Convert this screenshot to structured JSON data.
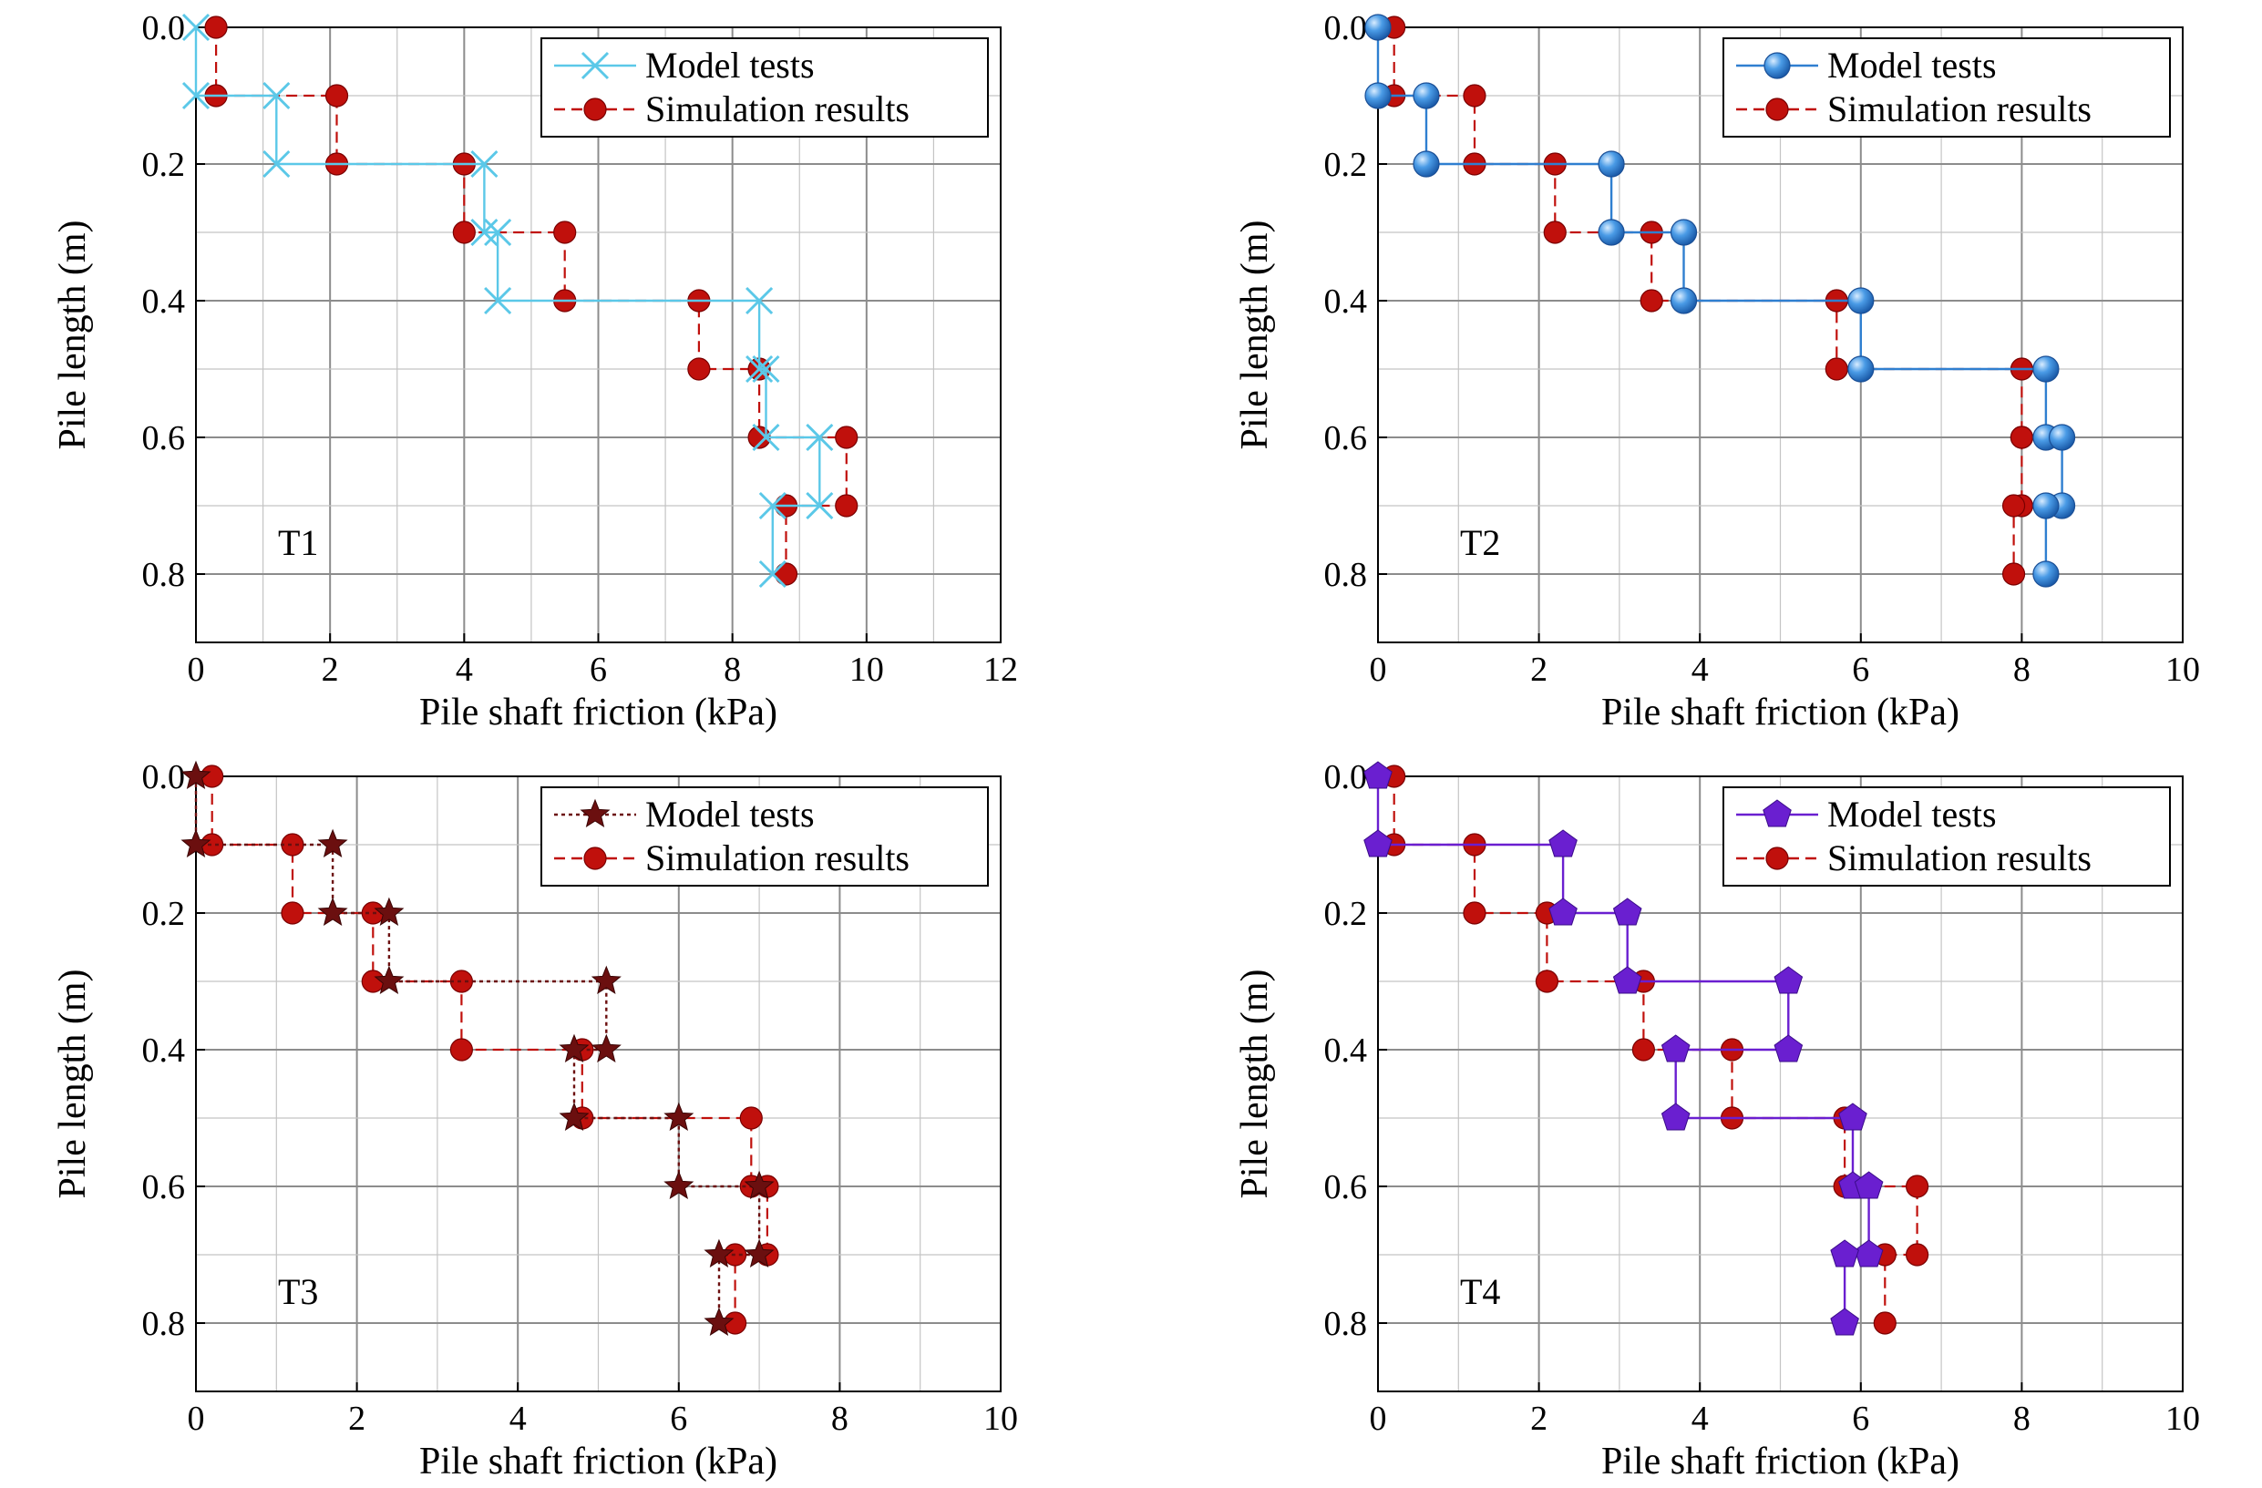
{
  "figure": {
    "legend_labels": [
      "Model tests",
      "Simulation results"
    ],
    "xlabel": "Pile shaft friction (kPa)",
    "ylabel": "Pile length (m)"
  },
  "chart_data": [
    {
      "id": "T1",
      "type": "line",
      "panel_label": "T1",
      "xlabel": "Pile shaft friction (kPa)",
      "ylabel": "Pile length (m)",
      "xlim": [
        0,
        12
      ],
      "ylim": [
        0,
        0.9
      ],
      "y_inverted": true,
      "xticks": [
        0,
        2,
        4,
        6,
        8,
        10,
        12
      ],
      "xtick_labels": [
        "0",
        "2",
        "4",
        "6",
        "8",
        "10",
        "12"
      ],
      "yticks": [
        0.0,
        0.2,
        0.4,
        0.6,
        0.8
      ],
      "ytick_labels": [
        "0.0",
        "0.2",
        "0.4",
        "0.6",
        "0.8"
      ],
      "grid": true,
      "legend_position": "top-right",
      "series": [
        {
          "name": "Model tests",
          "color": "#5bc8e8",
          "line": "solid",
          "marker": "x",
          "points": [
            [
              0,
              0.0
            ],
            [
              0,
              0.1
            ],
            [
              1.2,
              0.1
            ],
            [
              1.2,
              0.2
            ],
            [
              4.3,
              0.2
            ],
            [
              4.3,
              0.3
            ],
            [
              4.5,
              0.3
            ],
            [
              4.5,
              0.4
            ],
            [
              8.4,
              0.4
            ],
            [
              8.4,
              0.5
            ],
            [
              8.5,
              0.5
            ],
            [
              8.5,
              0.6
            ],
            [
              9.3,
              0.6
            ],
            [
              9.3,
              0.7
            ],
            [
              8.6,
              0.7
            ],
            [
              8.6,
              0.8
            ]
          ]
        },
        {
          "name": "Simulation results",
          "color": "#c0100c",
          "line": "dashed",
          "marker": "circle",
          "points": [
            [
              0.3,
              0.0
            ],
            [
              0.3,
              0.1
            ],
            [
              2.1,
              0.1
            ],
            [
              2.1,
              0.2
            ],
            [
              4.0,
              0.2
            ],
            [
              4.0,
              0.3
            ],
            [
              5.5,
              0.3
            ],
            [
              5.5,
              0.4
            ],
            [
              7.5,
              0.4
            ],
            [
              7.5,
              0.5
            ],
            [
              8.4,
              0.5
            ],
            [
              8.4,
              0.6
            ],
            [
              9.7,
              0.6
            ],
            [
              9.7,
              0.7
            ],
            [
              8.8,
              0.7
            ],
            [
              8.8,
              0.8
            ]
          ]
        }
      ]
    },
    {
      "id": "T2",
      "type": "line",
      "panel_label": "T2",
      "xlabel": "Pile shaft friction (kPa)",
      "ylabel": "Pile length (m)",
      "xlim": [
        0,
        10
      ],
      "ylim": [
        0,
        0.9
      ],
      "y_inverted": true,
      "xticks": [
        0,
        2,
        4,
        6,
        8,
        10
      ],
      "xtick_labels": [
        "0",
        "2",
        "4",
        "6",
        "8",
        "10"
      ],
      "yticks": [
        0.0,
        0.2,
        0.4,
        0.6,
        0.8
      ],
      "ytick_labels": [
        "0.0",
        "0.2",
        "0.4",
        "0.6",
        "0.8"
      ],
      "grid": true,
      "legend_position": "top-right",
      "series": [
        {
          "name": "Model tests",
          "color": "#2f7fd0",
          "line": "solid",
          "marker": "sphere",
          "points": [
            [
              0.0,
              0.0
            ],
            [
              0.0,
              0.1
            ],
            [
              0.6,
              0.1
            ],
            [
              0.6,
              0.2
            ],
            [
              2.9,
              0.2
            ],
            [
              2.9,
              0.3
            ],
            [
              3.8,
              0.3
            ],
            [
              3.8,
              0.4
            ],
            [
              6.0,
              0.4
            ],
            [
              6.0,
              0.5
            ],
            [
              8.3,
              0.5
            ],
            [
              8.3,
              0.6
            ],
            [
              8.5,
              0.6
            ],
            [
              8.5,
              0.7
            ],
            [
              8.3,
              0.7
            ],
            [
              8.3,
              0.8
            ]
          ]
        },
        {
          "name": "Simulation results",
          "color": "#c0100c",
          "line": "dashed",
          "marker": "circle",
          "points": [
            [
              0.2,
              0.0
            ],
            [
              0.2,
              0.1
            ],
            [
              1.2,
              0.1
            ],
            [
              1.2,
              0.2
            ],
            [
              2.2,
              0.2
            ],
            [
              2.2,
              0.3
            ],
            [
              3.4,
              0.3
            ],
            [
              3.4,
              0.4
            ],
            [
              5.7,
              0.4
            ],
            [
              5.7,
              0.5
            ],
            [
              8.0,
              0.5
            ],
            [
              8.0,
              0.6
            ],
            [
              8.0,
              0.6
            ],
            [
              8.0,
              0.7
            ],
            [
              7.9,
              0.7
            ],
            [
              7.9,
              0.8
            ]
          ]
        }
      ]
    },
    {
      "id": "T3",
      "type": "line",
      "panel_label": "T3",
      "xlabel": "Pile shaft friction (kPa)",
      "ylabel": "Pile length (m)",
      "xlim": [
        0,
        10
      ],
      "ylim": [
        0,
        0.9
      ],
      "y_inverted": true,
      "xticks": [
        0,
        2,
        4,
        6,
        8,
        10
      ],
      "xtick_labels": [
        "0",
        "2",
        "4",
        "6",
        "8",
        "10"
      ],
      "yticks": [
        0.0,
        0.2,
        0.4,
        0.6,
        0.8
      ],
      "ytick_labels": [
        "0.0",
        "0.2",
        "0.4",
        "0.6",
        "0.8"
      ],
      "grid": true,
      "legend_position": "top-right",
      "series": [
        {
          "name": "Model tests",
          "color": "#6b0f0f",
          "line": "dotted",
          "marker": "star",
          "points": [
            [
              0.0,
              0.0
            ],
            [
              0.0,
              0.1
            ],
            [
              1.7,
              0.1
            ],
            [
              1.7,
              0.2
            ],
            [
              2.4,
              0.2
            ],
            [
              2.4,
              0.3
            ],
            [
              5.1,
              0.3
            ],
            [
              5.1,
              0.4
            ],
            [
              4.7,
              0.4
            ],
            [
              4.7,
              0.5
            ],
            [
              6.0,
              0.5
            ],
            [
              6.0,
              0.6
            ],
            [
              7.0,
              0.6
            ],
            [
              7.0,
              0.7
            ],
            [
              6.5,
              0.7
            ],
            [
              6.5,
              0.8
            ]
          ]
        },
        {
          "name": "Simulation results",
          "color": "#c0100c",
          "line": "dashed",
          "marker": "circle",
          "points": [
            [
              0.2,
              0.0
            ],
            [
              0.2,
              0.1
            ],
            [
              1.2,
              0.1
            ],
            [
              1.2,
              0.2
            ],
            [
              2.2,
              0.2
            ],
            [
              2.2,
              0.3
            ],
            [
              3.3,
              0.3
            ],
            [
              3.3,
              0.4
            ],
            [
              4.8,
              0.4
            ],
            [
              4.8,
              0.5
            ],
            [
              6.9,
              0.5
            ],
            [
              6.9,
              0.6
            ],
            [
              7.1,
              0.6
            ],
            [
              7.1,
              0.7
            ],
            [
              6.7,
              0.7
            ],
            [
              6.7,
              0.8
            ]
          ]
        }
      ]
    },
    {
      "id": "T4",
      "type": "line",
      "panel_label": "T4",
      "xlabel": "Pile shaft friction (kPa)",
      "ylabel": "Pile length (m)",
      "xlim": [
        0,
        10
      ],
      "ylim": [
        0,
        0.9
      ],
      "y_inverted": true,
      "xticks": [
        0,
        2,
        4,
        6,
        8,
        10
      ],
      "xtick_labels": [
        "0",
        "2",
        "4",
        "6",
        "8",
        "10"
      ],
      "yticks": [
        0.0,
        0.2,
        0.4,
        0.6,
        0.8
      ],
      "ytick_labels": [
        "0.0",
        "0.2",
        "0.4",
        "0.6",
        "0.8"
      ],
      "grid": true,
      "legend_position": "top-right",
      "series": [
        {
          "name": "Model tests",
          "color": "#6a1fd0",
          "line": "solid",
          "marker": "pentagon",
          "points": [
            [
              0.0,
              0.0
            ],
            [
              0.0,
              0.1
            ],
            [
              2.3,
              0.1
            ],
            [
              2.3,
              0.2
            ],
            [
              3.1,
              0.2
            ],
            [
              3.1,
              0.3
            ],
            [
              5.1,
              0.3
            ],
            [
              5.1,
              0.4
            ],
            [
              3.7,
              0.4
            ],
            [
              3.7,
              0.5
            ],
            [
              5.9,
              0.5
            ],
            [
              5.9,
              0.6
            ],
            [
              6.1,
              0.6
            ],
            [
              6.1,
              0.7
            ],
            [
              5.8,
              0.7
            ],
            [
              5.8,
              0.8
            ]
          ]
        },
        {
          "name": "Simulation results",
          "color": "#c0100c",
          "line": "dashed",
          "marker": "circle",
          "points": [
            [
              0.2,
              0.0
            ],
            [
              0.2,
              0.1
            ],
            [
              1.2,
              0.1
            ],
            [
              1.2,
              0.2
            ],
            [
              2.1,
              0.2
            ],
            [
              2.1,
              0.3
            ],
            [
              3.3,
              0.3
            ],
            [
              3.3,
              0.4
            ],
            [
              4.4,
              0.4
            ],
            [
              4.4,
              0.5
            ],
            [
              5.8,
              0.5
            ],
            [
              5.8,
              0.6
            ],
            [
              6.7,
              0.6
            ],
            [
              6.7,
              0.7
            ],
            [
              6.3,
              0.7
            ],
            [
              6.3,
              0.8
            ]
          ]
        }
      ]
    }
  ]
}
